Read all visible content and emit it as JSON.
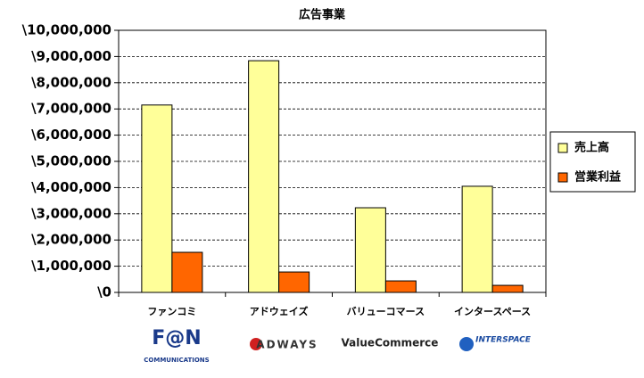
{
  "chart_data": {
    "type": "bar",
    "title": "広告事業",
    "categories": [
      "ファンコミ",
      "アドウェイズ",
      "バリューコマース",
      "インタースペース"
    ],
    "series": [
      {
        "name": "売上高",
        "color": "#ffff99",
        "values": [
          7150000,
          8840000,
          3230000,
          4050000
        ]
      },
      {
        "name": "営業利益",
        "color": "#ff6600",
        "values": [
          1530000,
          780000,
          440000,
          270000
        ]
      }
    ],
    "ylim": [
      0,
      10000000
    ],
    "yticks": [
      {
        "value": 0,
        "label": "\\0"
      },
      {
        "value": 1000000,
        "label": "\\1,000,000"
      },
      {
        "value": 2000000,
        "label": "\\2,000,000"
      },
      {
        "value": 3000000,
        "label": "\\3,000,000"
      },
      {
        "value": 4000000,
        "label": "\\4,000,000"
      },
      {
        "value": 5000000,
        "label": "\\5,000,000"
      },
      {
        "value": 6000000,
        "label": "\\6,000,000"
      },
      {
        "value": 7000000,
        "label": "\\7,000,000"
      },
      {
        "value": 8000000,
        "label": "\\8,000,000"
      },
      {
        "value": 9000000,
        "label": "\\9,000,000"
      },
      {
        "value": 10000000,
        "label": "\\10,000,000"
      }
    ],
    "grid": true,
    "legend": "right"
  },
  "logos": [
    "F@N",
    "COMMUNICATIONS",
    "ADWAYS",
    "ValueCommerce",
    "INTERSPACE"
  ]
}
